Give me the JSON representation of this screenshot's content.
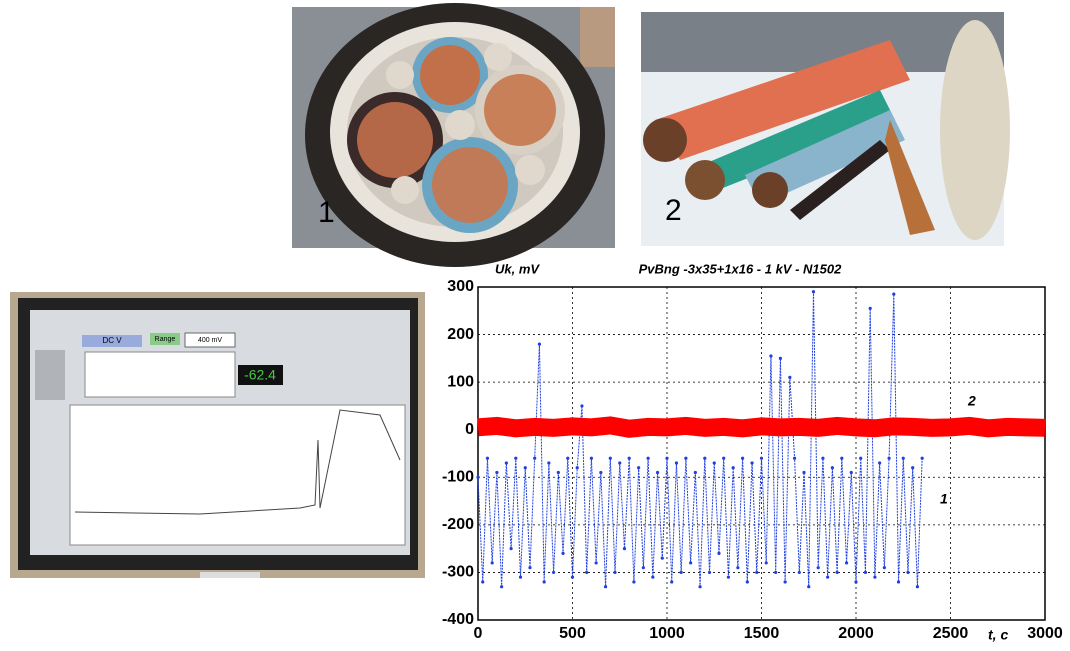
{
  "photos": {
    "labels": [
      "1",
      "2"
    ]
  },
  "monitor": {
    "mode": "DC V",
    "range_label": "Range",
    "range": "400 mV",
    "reading": "-62.4"
  },
  "chart_data": {
    "type": "line",
    "title": "PvBng -3x35+1x16 - 1 kV - N1502",
    "y_label": "Uk, mV",
    "x_label": "t, c",
    "xlim": [
      0,
      3000
    ],
    "xticks": [
      0,
      500,
      1000,
      1500,
      2000,
      2500,
      3000
    ],
    "ylim": [
      -400,
      300
    ],
    "yticks": [
      -400,
      -300,
      -200,
      -100,
      0,
      100,
      200,
      300
    ],
    "grid": true,
    "series": [
      {
        "name": "1",
        "color": "#1f3fe0",
        "x": [
          0,
          25,
          50,
          75,
          100,
          125,
          150,
          175,
          200,
          225,
          250,
          275,
          300,
          325,
          350,
          375,
          400,
          425,
          450,
          475,
          500,
          525,
          550,
          575,
          600,
          625,
          650,
          675,
          700,
          725,
          750,
          775,
          800,
          825,
          850,
          875,
          900,
          925,
          950,
          975,
          1000,
          1025,
          1050,
          1075,
          1100,
          1125,
          1150,
          1175,
          1200,
          1225,
          1250,
          1275,
          1300,
          1325,
          1350,
          1375,
          1400,
          1425,
          1450,
          1475,
          1500,
          1525,
          1550,
          1575,
          1600,
          1625,
          1650,
          1675,
          1700,
          1725,
          1750,
          1775,
          1800,
          1825,
          1850,
          1875,
          1900,
          1925,
          1950,
          1975,
          2000,
          2025,
          2050,
          2075,
          2100,
          2125,
          2150,
          2175,
          2200,
          2225,
          2250,
          2275,
          2300,
          2325,
          2350
        ],
        "values": [
          -100,
          -320,
          -60,
          -280,
          -90,
          -330,
          -70,
          -250,
          -60,
          -310,
          -80,
          -290,
          -60,
          180,
          -320,
          -70,
          -300,
          -90,
          -260,
          -60,
          -310,
          -80,
          50,
          -300,
          -60,
          -280,
          -90,
          -330,
          -60,
          -300,
          -70,
          -250,
          -60,
          -320,
          -80,
          -290,
          -60,
          -310,
          -90,
          -270,
          -60,
          -320,
          -70,
          -300,
          -60,
          -280,
          -90,
          -330,
          -60,
          -300,
          -70,
          -260,
          -60,
          -310,
          -80,
          -290,
          -60,
          -320,
          -70,
          -300,
          -60,
          -280,
          155,
          -300,
          150,
          -320,
          110,
          -60,
          -300,
          -90,
          -330,
          290,
          -290,
          -60,
          -310,
          -80,
          -300,
          -60,
          -280,
          -90,
          -320,
          -60,
          -300,
          255,
          -310,
          -70,
          -290,
          -60,
          285,
          -320,
          -60,
          -300,
          -80,
          -330,
          -60
        ]
      },
      {
        "name": "2",
        "color": "#ff0000",
        "x": [
          0,
          100,
          200,
          300,
          400,
          500,
          600,
          700,
          800,
          900,
          1000,
          1100,
          1200,
          1300,
          1400,
          1500,
          1600,
          1700,
          1800,
          1900,
          2000,
          2100,
          2200,
          2300,
          2400,
          2500,
          2600,
          2700,
          2800,
          2900,
          3000
        ],
        "values": [
          5,
          8,
          3,
          6,
          4,
          7,
          5,
          9,
          2,
          6,
          5,
          8,
          4,
          6,
          3,
          7,
          5,
          6,
          4,
          8,
          5,
          3,
          7,
          6,
          4,
          5,
          8,
          3,
          6,
          5,
          4
        ]
      }
    ]
  }
}
